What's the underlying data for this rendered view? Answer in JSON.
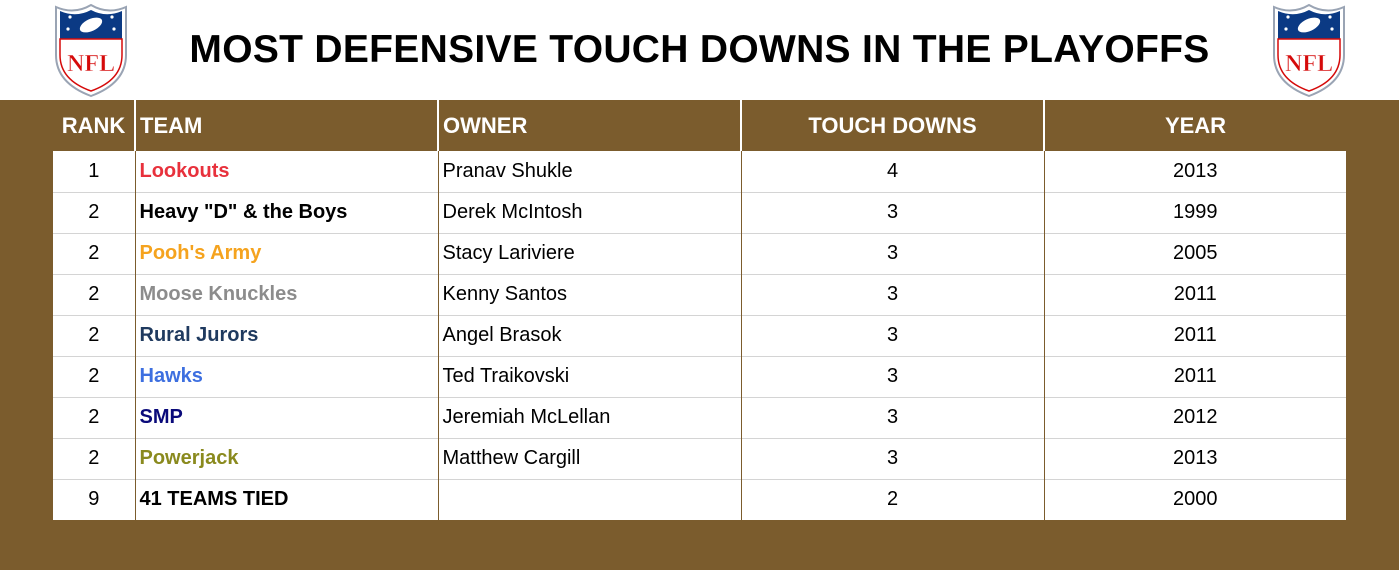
{
  "title": "MOST DEFENSIVE TOUCH DOWNS IN THE PLAYOFFS",
  "logo_text": "NFL",
  "colors": {
    "panel": "#7b5c2d",
    "logo_blue": "#0b3a84",
    "logo_red": "#d50a0a"
  },
  "columns": {
    "rank": "RANK",
    "team": "TEAM",
    "owner": "OWNER",
    "touch_downs": "TOUCH DOWNS",
    "year": "YEAR"
  },
  "rows": [
    {
      "rank": "1",
      "team": "Lookouts",
      "team_color": "#e8313c",
      "owner": "Pranav Shukle",
      "touch_downs": "4",
      "year": "2013"
    },
    {
      "rank": "2",
      "team": "Heavy \"D\" & the Boys",
      "team_color": "#000000",
      "owner": "Derek McIntosh",
      "touch_downs": "3",
      "year": "1999"
    },
    {
      "rank": "2",
      "team": "Pooh's Army",
      "team_color": "#f5a31e",
      "owner": "Stacy Lariviere",
      "touch_downs": "3",
      "year": "2005"
    },
    {
      "rank": "2",
      "team": "Moose Knuckles",
      "team_color": "#8c8c8c",
      "owner": "Kenny Santos",
      "touch_downs": "3",
      "year": "2011"
    },
    {
      "rank": "2",
      "team": "Rural Jurors",
      "team_color": "#1f3a5f",
      "owner": "Angel Brasok",
      "touch_downs": "3",
      "year": "2011"
    },
    {
      "rank": "2",
      "team": "Hawks",
      "team_color": "#3d6fe0",
      "owner": "Ted Traikovski",
      "touch_downs": "3",
      "year": "2011"
    },
    {
      "rank": "2",
      "team": "SMP",
      "team_color": "#0a0a7a",
      "owner": "Jeremiah McLellan",
      "touch_downs": "3",
      "year": "2012"
    },
    {
      "rank": "2",
      "team": "Powerjack",
      "team_color": "#8a8a1e",
      "owner": "Matthew Cargill",
      "touch_downs": "3",
      "year": "2013"
    },
    {
      "rank": "9",
      "team": "41 TEAMS TIED",
      "team_color": "#000000",
      "owner": "",
      "touch_downs": "2",
      "year": "2000"
    }
  ]
}
